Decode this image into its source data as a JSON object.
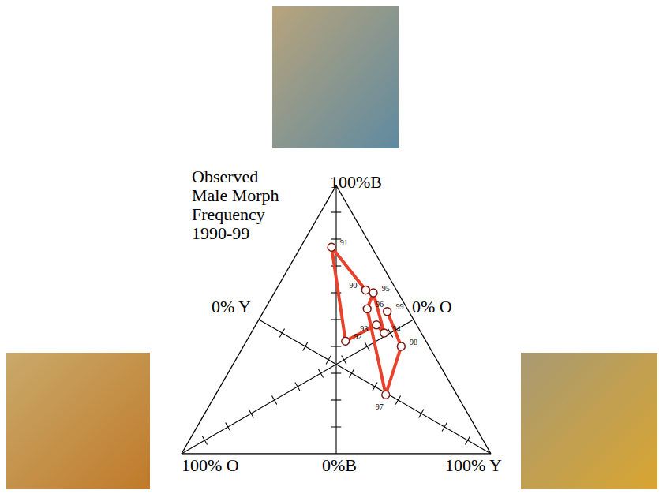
{
  "chart_data": {
    "type": "ternary",
    "title": "Observed Male Morph Frequency 1990-99",
    "lim": [
      0,
      100
    ],
    "axes": [
      {
        "morph": "B",
        "max_label": "100%B",
        "min_label": "0%B",
        "ticks": [
          10,
          20,
          30,
          40,
          50,
          60,
          70,
          80,
          90
        ]
      },
      {
        "morph": "O",
        "max_label": "100% O",
        "min_label": "0% O",
        "ticks": [
          10,
          20,
          30,
          40,
          50,
          60,
          70,
          80,
          90
        ]
      },
      {
        "morph": "Y",
        "max_label": "100% Y",
        "min_label": "0% Y",
        "ticks": [
          10,
          20,
          30,
          40,
          50,
          60,
          70,
          80,
          90
        ]
      }
    ],
    "labels": [
      "90",
      "91",
      "92",
      "93",
      "94",
      "95",
      "96",
      "97",
      "98",
      "99"
    ],
    "values": {
      "B": [
        61,
        77,
        42,
        48,
        45,
        60,
        54,
        22,
        40,
        53
      ],
      "O": [
        10,
        13,
        26,
        13,
        12,
        8,
        13,
        23,
        9,
        7
      ],
      "Y": [
        29,
        10,
        32,
        39,
        43,
        32,
        33,
        55,
        51,
        40
      ]
    },
    "color": "#e8412c",
    "marker": "circle",
    "line_style": "solid"
  }
}
